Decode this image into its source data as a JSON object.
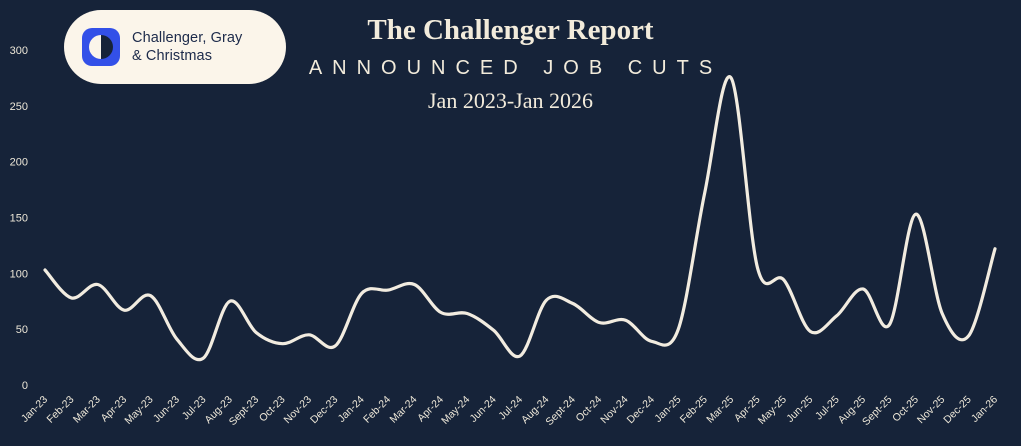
{
  "page": {
    "background_color": "#162339",
    "accent_color": "#F2EBDB"
  },
  "logo": {
    "line1": "Challenger, Gray",
    "line2": "& Christmas",
    "mark_color": "#3350E8"
  },
  "header": {
    "title": "The Challenger Report",
    "subtitle": "ANNOUNCED JOB CUTS",
    "range": "Jan 2023-Jan 2026"
  },
  "chart_data": {
    "type": "line",
    "title": "The Challenger Report — Announced Job Cuts, Jan 2023-Jan 2026",
    "xlabel": "",
    "ylabel": "",
    "x": [
      "Jan-23",
      "Feb-23",
      "Mar-23",
      "Apr-23",
      "May-23",
      "Jun-23",
      "Jul-23",
      "Aug-23",
      "Sept-23",
      "Oct-23",
      "Nov-23",
      "Dec-23",
      "Jan-24",
      "Feb-24",
      "Mar-24",
      "Apr-24",
      "May-24",
      "Jun-24",
      "Jul-24",
      "Aug-24",
      "Sept-24",
      "Oct-24",
      "Nov-24",
      "Dec-24",
      "Jan-25",
      "Feb-25",
      "Mar-25",
      "Apr-25",
      "May-25",
      "Jun-25",
      "Jul-25",
      "Aug-25",
      "Sept-25",
      "Oct-25",
      "Nov-25",
      "Dec-25",
      "Jan-26"
    ],
    "values": [
      103,
      78,
      90,
      67,
      80,
      41,
      24,
      75,
      47,
      37,
      45,
      35,
      82,
      85,
      90,
      65,
      64,
      49,
      26,
      76,
      73,
      56,
      58,
      39,
      50,
      172,
      275,
      105,
      94,
      48,
      62,
      86,
      54,
      153,
      64,
      44,
      122
    ],
    "ylim": [
      0,
      300
    ],
    "yticks": [
      0,
      50,
      100,
      150,
      200,
      250,
      300
    ],
    "line_color": "#F2ECE0",
    "grid": false,
    "legend_position": "none"
  }
}
